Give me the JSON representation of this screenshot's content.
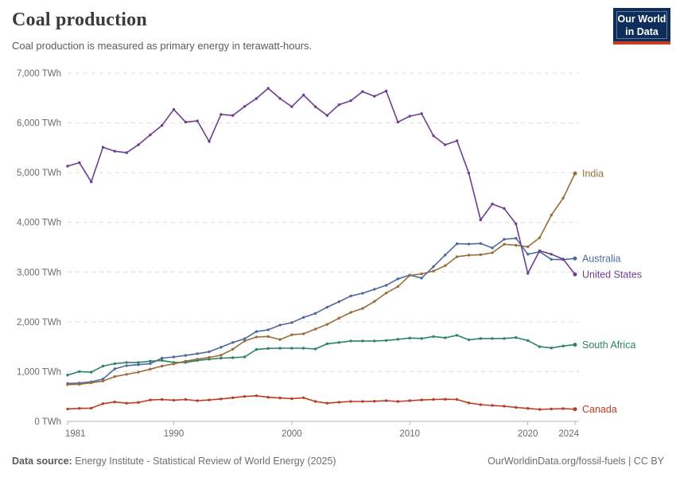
{
  "header": {
    "title": "Coal production",
    "subtitle": "Coal production is measured as primary energy in terawatt-hours.",
    "logo": {
      "line1": "Our World",
      "line2": "in Data",
      "bg_color": "#0d2e5b",
      "accent_color": "#c93c20"
    }
  },
  "chart_data": {
    "type": "line",
    "unit": "TWh",
    "grid": "horizontal-dashed",
    "legend_position": "right-of-line-ends",
    "ylim": [
      0,
      7000
    ],
    "yticks": [
      0,
      1000,
      2000,
      3000,
      4000,
      5000,
      6000,
      7000
    ],
    "xticks": [
      1981,
      1990,
      2000,
      2010,
      2020,
      2024
    ],
    "x": [
      1981,
      1982,
      1983,
      1984,
      1985,
      1986,
      1987,
      1988,
      1989,
      1990,
      1991,
      1992,
      1993,
      1994,
      1995,
      1996,
      1997,
      1998,
      1999,
      2000,
      2001,
      2002,
      2003,
      2004,
      2005,
      2006,
      2007,
      2008,
      2009,
      2010,
      2011,
      2012,
      2013,
      2014,
      2015,
      2016,
      2017,
      2018,
      2019,
      2020,
      2021,
      2022,
      2023,
      2024
    ],
    "series": [
      {
        "name": "South Africa",
        "color": "#2C8465",
        "values": [
          930,
          1000,
          990,
          1110,
          1160,
          1185,
          1185,
          1210,
          1225,
          1185,
          1185,
          1225,
          1250,
          1270,
          1280,
          1295,
          1445,
          1465,
          1470,
          1470,
          1470,
          1455,
          1560,
          1585,
          1615,
          1615,
          1615,
          1625,
          1650,
          1675,
          1665,
          1705,
          1680,
          1730,
          1640,
          1665,
          1665,
          1665,
          1685,
          1625,
          1500,
          1475,
          1515,
          1540
        ]
      },
      {
        "name": "Canada",
        "color": "#BC3D22",
        "values": [
          250,
          260,
          265,
          355,
          390,
          365,
          380,
          430,
          440,
          425,
          440,
          415,
          430,
          450,
          475,
          500,
          515,
          485,
          470,
          455,
          475,
          400,
          365,
          385,
          400,
          400,
          405,
          415,
          400,
          415,
          430,
          440,
          445,
          440,
          370,
          335,
          320,
          305,
          280,
          260,
          240,
          250,
          255,
          245
        ]
      },
      {
        "name": "Australia",
        "color": "#4C6A9C",
        "values": [
          760,
          770,
          795,
          850,
          1055,
          1120,
          1140,
          1160,
          1270,
          1295,
          1325,
          1360,
          1400,
          1490,
          1585,
          1660,
          1805,
          1840,
          1935,
          1985,
          2090,
          2170,
          2295,
          2405,
          2520,
          2575,
          2655,
          2735,
          2865,
          2940,
          2880,
          3110,
          3345,
          3570,
          3565,
          3575,
          3485,
          3660,
          3680,
          3360,
          3410,
          3255,
          3250,
          3275
        ]
      },
      {
        "name": "India",
        "color": "#996D39",
        "values": [
          740,
          745,
          775,
          810,
          900,
          945,
          990,
          1050,
          1110,
          1155,
          1210,
          1250,
          1285,
          1330,
          1450,
          1615,
          1695,
          1705,
          1645,
          1740,
          1760,
          1855,
          1950,
          2075,
          2190,
          2270,
          2410,
          2580,
          2710,
          2935,
          2965,
          3020,
          3130,
          3310,
          3340,
          3350,
          3390,
          3560,
          3540,
          3510,
          3690,
          4145,
          4490,
          4985
        ]
      },
      {
        "name": "United States",
        "color": "#6D3E91",
        "values": [
          5130,
          5200,
          4815,
          5510,
          5430,
          5400,
          5560,
          5760,
          5950,
          6270,
          6015,
          6040,
          5625,
          6170,
          6150,
          6330,
          6490,
          6695,
          6490,
          6325,
          6560,
          6325,
          6150,
          6365,
          6445,
          6630,
          6535,
          6640,
          6015,
          6135,
          6185,
          5740,
          5560,
          5640,
          4990,
          4050,
          4370,
          4280,
          3970,
          2975,
          3430,
          3360,
          3260,
          2955
        ]
      }
    ]
  },
  "footer": {
    "source_label": "Data source:",
    "source_text": " Energy Institute - Statistical Review of World Energy (2025)",
    "link_text": "OurWorldinData.org/fossil-fuels",
    "separator": " | ",
    "license_text": "CC BY"
  }
}
